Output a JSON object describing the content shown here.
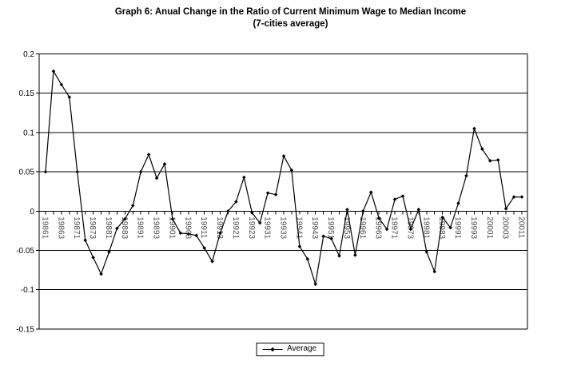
{
  "chart_data": {
    "type": "line",
    "title": "Graph 6: Anual Change in the Ratio of Current Minimum Wage to Median Income",
    "subtitle": "(7-cities  average)",
    "x_tick_labels": [
      "19861",
      "19863",
      "19871",
      "19873",
      "19881",
      "19883",
      "19891",
      "19893",
      "19901",
      "19903",
      "19911",
      "19913",
      "19921",
      "19923",
      "19931",
      "19933",
      "19941",
      "19943",
      "19951",
      "19953",
      "19961",
      "19963",
      "19971",
      "19973",
      "19981",
      "19983",
      "19991",
      "19993",
      "20001",
      "20003",
      "20011"
    ],
    "label_every": 2,
    "series": [
      {
        "name": "Average",
        "values": [
          0.05,
          0.178,
          0.161,
          0.145,
          0.05,
          -0.037,
          -0.059,
          -0.08,
          -0.052,
          -0.022,
          -0.01,
          0.007,
          0.05,
          0.072,
          0.042,
          0.06,
          -0.01,
          -0.028,
          -0.029,
          -0.031,
          -0.047,
          -0.064,
          -0.028,
          0.0,
          0.012,
          0.043,
          -0.002,
          -0.015,
          0.023,
          0.021,
          0.07,
          0.052,
          -0.045,
          -0.061,
          -0.093,
          -0.032,
          -0.035,
          -0.057,
          0.002,
          -0.056,
          0.0,
          0.024,
          -0.009,
          -0.023,
          0.015,
          0.019,
          -0.023,
          0.002,
          -0.052,
          -0.077,
          -0.008,
          -0.021,
          0.01,
          0.045,
          0.105,
          0.079,
          0.064,
          0.065,
          0.003,
          0.018,
          0.018
        ]
      }
    ],
    "ylim": [
      -0.15,
      0.2
    ],
    "y_tick_labels": [
      "0.2",
      "0.15",
      "0.1",
      "0.05",
      "0",
      "-0.05",
      "-0.1",
      "-0.15"
    ],
    "grid": "horizontal",
    "legend_position": "bottom-center",
    "marker": "diamond"
  },
  "colors": {
    "line": "#000000",
    "grid": "#000000",
    "axis": "#000000",
    "y_label_text": "#000000",
    "x_label_text": "#4d4d4d",
    "background": "#ffffff"
  }
}
